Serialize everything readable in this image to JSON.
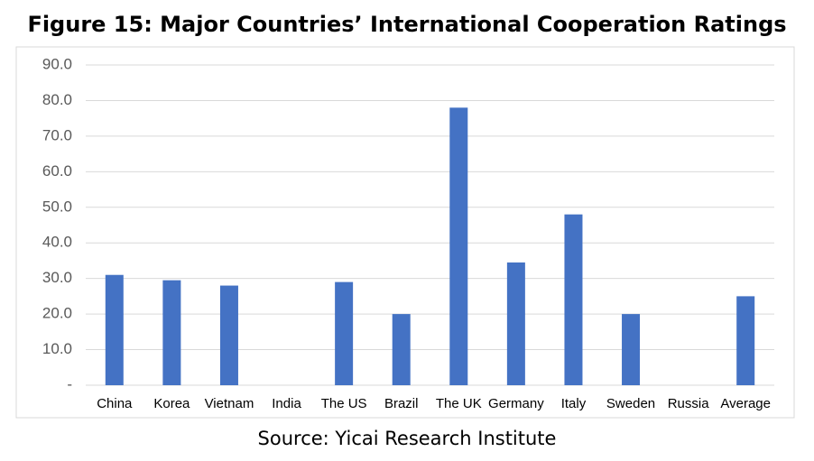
{
  "chart_data": {
    "type": "bar",
    "title": "Figure 15: Major Countries’ International Cooperation Ratings",
    "source": "Source: Yicai Research Institute",
    "categories": [
      "China",
      "Korea",
      "Vietnam",
      "India",
      "The US",
      "Brazil",
      "The UK",
      "Germany",
      "Italy",
      "Sweden",
      "Russia",
      "Average"
    ],
    "values": [
      31,
      29.5,
      28,
      0,
      29,
      20,
      78,
      34.5,
      48,
      20,
      0,
      25
    ],
    "color": "#4472c4",
    "ylim": [
      0,
      90
    ],
    "yticks": [
      {
        "value": 0,
        "label": "-"
      },
      {
        "value": 10,
        "label": "10.0"
      },
      {
        "value": 20,
        "label": "20.0"
      },
      {
        "value": 30,
        "label": "30.0"
      },
      {
        "value": 40,
        "label": "40.0"
      },
      {
        "value": 50,
        "label": "50.0"
      },
      {
        "value": 60,
        "label": "60.0"
      },
      {
        "value": 70,
        "label": "70.0"
      },
      {
        "value": 80,
        "label": "80.0"
      },
      {
        "value": 90,
        "label": "90.0"
      }
    ],
    "grid": true
  }
}
